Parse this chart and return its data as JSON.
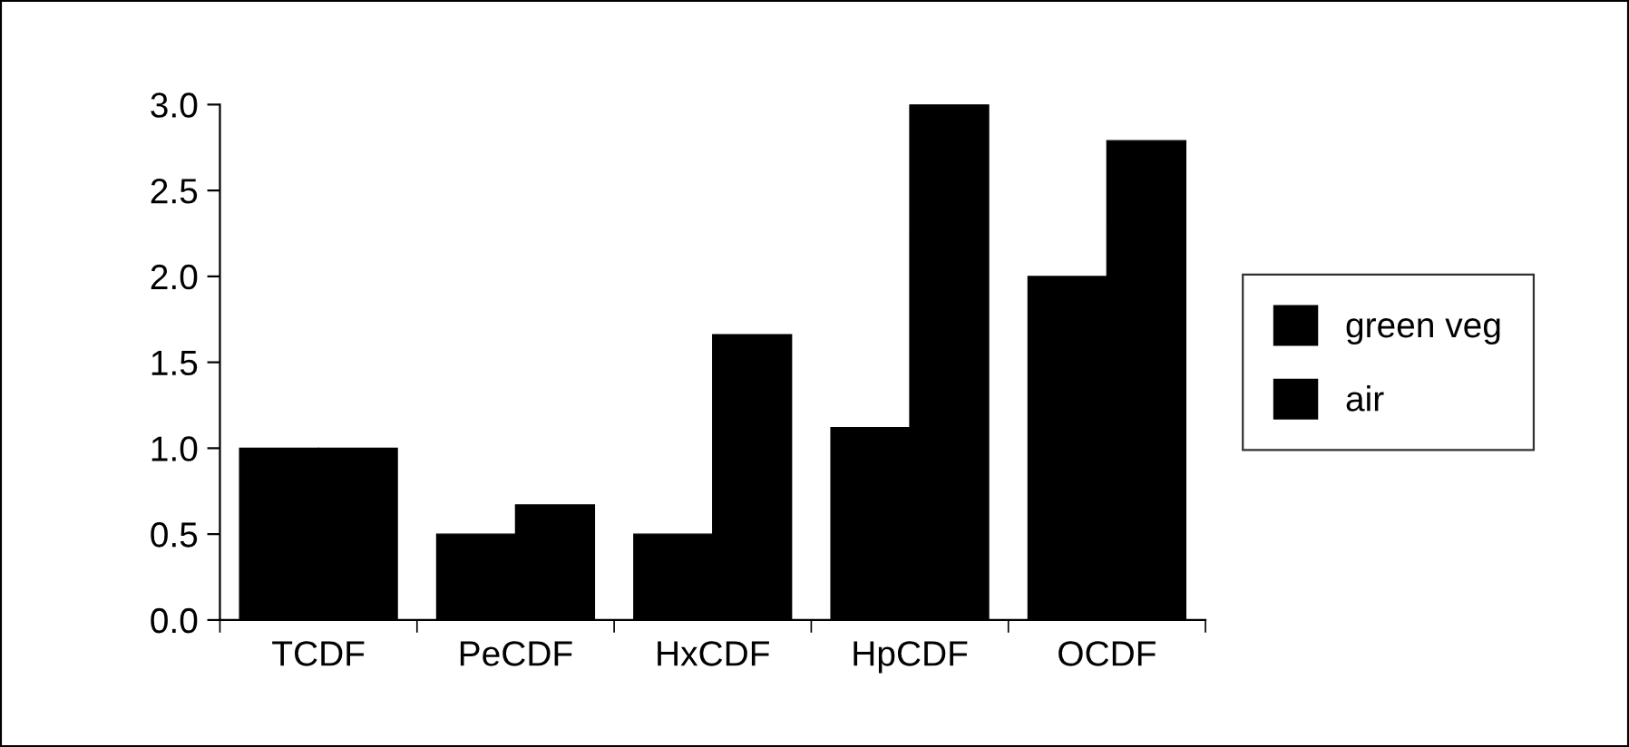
{
  "chart_data": {
    "type": "bar",
    "categories": [
      "TCDF",
      "PeCDF",
      "HxCDF",
      "HpCDF",
      "OCDF"
    ],
    "series": [
      {
        "name": "green veg",
        "color": "#000000",
        "values": [
          1.0,
          0.5,
          0.5,
          1.12,
          2.0
        ]
      },
      {
        "name": "air",
        "color": "#000000",
        "values": [
          1.0,
          0.67,
          1.66,
          3.0,
          2.79
        ]
      }
    ],
    "ylim": [
      0,
      3.0
    ],
    "yticks": [
      {
        "value": 0,
        "label": "0.0"
      },
      {
        "value": 0.5,
        "label": "0.5"
      },
      {
        "value": 1.0,
        "label": "1.0"
      },
      {
        "value": 1.5,
        "label": "1.5"
      },
      {
        "value": 2.0,
        "label": "2.0"
      },
      {
        "value": 2.5,
        "label": "2.5"
      },
      {
        "value": 3.0,
        "label": "3.0"
      }
    ],
    "grid": false,
    "legend": "right"
  }
}
